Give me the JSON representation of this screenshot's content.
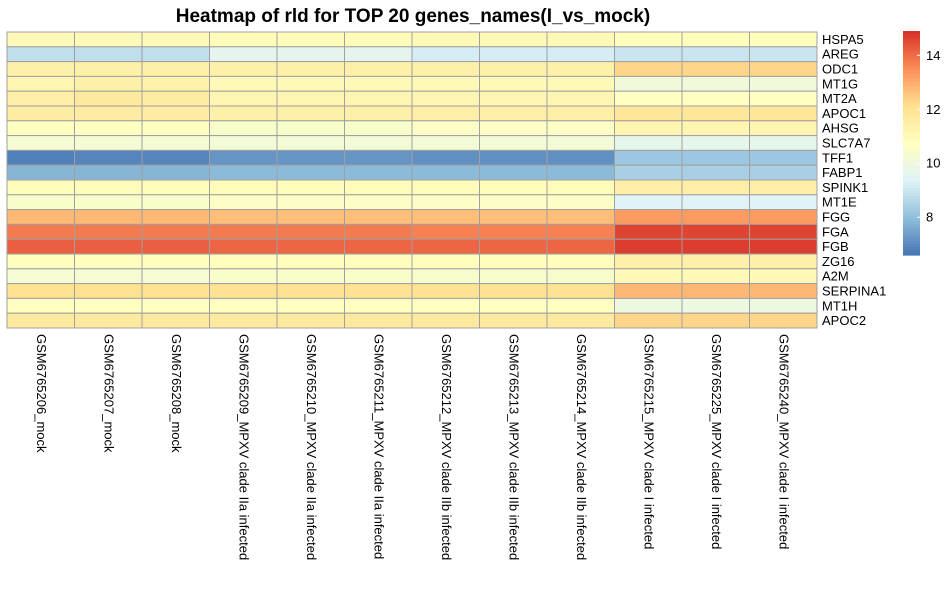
{
  "chart_data": {
    "type": "heatmap",
    "title": "Heatmap of rld for TOP 20 genes_names(I_vs_mock)",
    "rows": [
      "HSPA5",
      "AREG",
      "ODC1",
      "MT1G",
      "MT2A",
      "APOC1",
      "AHSG",
      "SLC7A7",
      "TFF1",
      "FABP1",
      "SPINK1",
      "MT1E",
      "FGG",
      "FGA",
      "FGB",
      "ZG16",
      "A2M",
      "SERPINA1",
      "MT1H",
      "APOC2"
    ],
    "columns": [
      "GSM6765206_mock",
      "GSM6765207_mock",
      "GSM6765208_mock",
      "GSM6765209_MPXV clade IIa infected",
      "GSM6765210_MPXV clade IIa infected",
      "GSM6765211_MPXV clade IIa infected",
      "GSM6765212_MPXV clade IIb infected",
      "GSM6765213_MPXV clade IIb infected",
      "GSM6765214_MPXV clade IIb infected",
      "GSM6765215_MPXV clade I infected",
      "GSM6765225_MPXV clade I infected",
      "GSM6765240_MPXV clade I infected"
    ],
    "values": [
      [
        11.0,
        11.0,
        11.0,
        10.9,
        10.9,
        10.9,
        11.0,
        11.0,
        11.0,
        10.8,
        10.8,
        10.8
      ],
      [
        8.8,
        8.8,
        8.8,
        9.6,
        9.6,
        9.6,
        9.2,
        9.2,
        9.2,
        9.0,
        9.0,
        9.0
      ],
      [
        11.4,
        11.4,
        11.4,
        11.4,
        11.4,
        11.4,
        11.4,
        11.4,
        11.4,
        12.3,
        12.3,
        12.3
      ],
      [
        11.2,
        11.4,
        11.3,
        11.0,
        11.0,
        11.0,
        11.0,
        11.0,
        11.0,
        10.1,
        10.1,
        10.1
      ],
      [
        11.5,
        11.7,
        11.6,
        11.2,
        11.2,
        11.2,
        11.2,
        11.2,
        11.2,
        10.7,
        10.7,
        10.7
      ],
      [
        11.6,
        11.6,
        11.6,
        11.4,
        11.4,
        11.4,
        11.5,
        11.5,
        11.5,
        11.8,
        11.8,
        11.8
      ],
      [
        10.7,
        10.7,
        10.7,
        10.5,
        10.5,
        10.5,
        10.6,
        10.6,
        10.6,
        11.2,
        11.2,
        11.2
      ],
      [
        10.3,
        10.3,
        10.3,
        10.2,
        10.2,
        10.2,
        10.2,
        10.2,
        10.2,
        9.7,
        9.7,
        9.7
      ],
      [
        6.8,
        6.9,
        6.9,
        7.2,
        7.2,
        7.2,
        7.1,
        7.1,
        7.1,
        8.2,
        8.2,
        8.2
      ],
      [
        7.8,
        7.8,
        7.8,
        7.9,
        7.9,
        7.9,
        7.9,
        7.9,
        7.9,
        8.4,
        8.4,
        8.4
      ],
      [
        10.9,
        10.9,
        10.9,
        10.9,
        10.9,
        10.9,
        10.9,
        10.9,
        10.9,
        11.5,
        11.5,
        11.5
      ],
      [
        10.5,
        10.5,
        10.5,
        10.6,
        10.6,
        10.6,
        10.6,
        10.6,
        10.6,
        9.4,
        9.4,
        9.4
      ],
      [
        12.8,
        12.8,
        12.8,
        12.7,
        12.7,
        12.7,
        12.7,
        12.7,
        12.7,
        13.3,
        13.3,
        13.3
      ],
      [
        13.8,
        13.8,
        13.8,
        13.8,
        13.8,
        13.8,
        13.7,
        13.7,
        13.7,
        14.6,
        14.6,
        14.6
      ],
      [
        14.2,
        14.2,
        14.2,
        14.1,
        14.1,
        14.1,
        14.1,
        14.1,
        14.1,
        14.7,
        14.7,
        14.7
      ],
      [
        10.8,
        10.8,
        10.8,
        10.8,
        10.8,
        10.8,
        10.8,
        10.8,
        10.8,
        11.4,
        11.4,
        11.4
      ],
      [
        10.3,
        10.3,
        10.3,
        10.5,
        10.5,
        10.5,
        10.4,
        10.4,
        10.4,
        11.0,
        11.0,
        11.0
      ],
      [
        12.1,
        12.1,
        12.1,
        12.0,
        12.0,
        12.0,
        12.0,
        12.0,
        12.0,
        12.8,
        12.8,
        12.8
      ],
      [
        10.7,
        10.7,
        10.7,
        10.7,
        10.7,
        10.7,
        10.7,
        10.7,
        10.7,
        9.9,
        9.9,
        9.9
      ],
      [
        11.7,
        11.7,
        11.7,
        11.7,
        11.7,
        11.7,
        11.7,
        11.7,
        11.7,
        12.3,
        12.3,
        12.3
      ]
    ],
    "legend": {
      "range": [
        6.6,
        14.9
      ],
      "ticks": [
        8,
        10,
        12,
        14
      ],
      "colors": [
        "#4575B4",
        "#91BFDB",
        "#E0F3F8",
        "#FFFFBF",
        "#FEE090",
        "#FC8D59",
        "#D73027"
      ]
    },
    "cell_border_color": "#A0A0A0",
    "xlabel": "",
    "ylabel": ""
  }
}
